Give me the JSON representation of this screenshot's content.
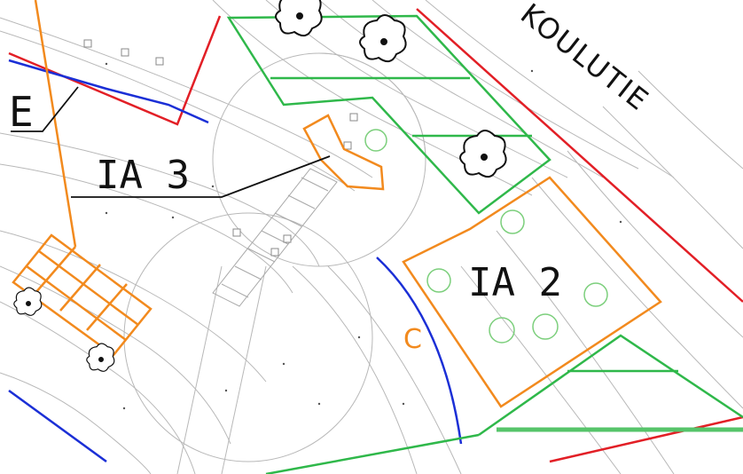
{
  "labels": {
    "area_3": "IA 3",
    "area_2": "IA 2",
    "road": "KOULUTIE",
    "edge_letter": "E",
    "orange_mark": "C"
  },
  "colors": {
    "background": "#ffffff",
    "contour": "#b8b8b8",
    "property_line": "#e21f26",
    "boundary_blue": "#1b2fd6",
    "green_zone": "#2fb84a",
    "orange_area": "#f28a1e",
    "tree_symbol": "#111111",
    "tree_planned": "#7ccf7c",
    "leader_line": "#111111"
  },
  "symbols": {
    "tree_existing": "flower-tree-icon",
    "tree_planned": "planned-tree-icon",
    "post": "square-post-icon"
  }
}
